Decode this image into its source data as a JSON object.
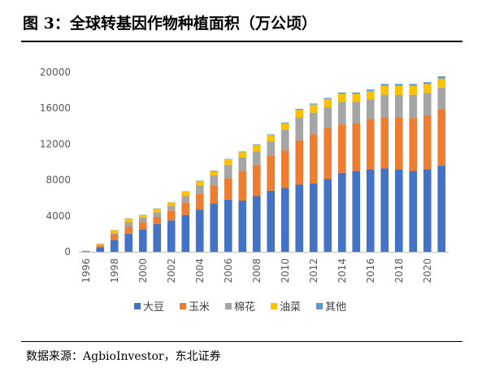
{
  "title": "图 3：全球转基因作物种植面积（万公顷）",
  "source": "数据来源：AgbioInvestor，东北证券",
  "chart_data": {
    "type": "bar",
    "stacked": true,
    "title": "图 3：全球转基因作物种植面积（万公顷）",
    "xlabel": "",
    "ylabel": "",
    "ylim": [
      0,
      20000
    ],
    "yticks": [
      "0",
      "4000",
      "8000",
      "12000",
      "16000",
      "20000"
    ],
    "categories": [
      "1996",
      "1997",
      "1998",
      "1999",
      "2000",
      "2001",
      "2002",
      "2003",
      "2004",
      "2005",
      "2006",
      "2007",
      "2008",
      "2009",
      "2010",
      "2011",
      "2012",
      "2013",
      "2014",
      "2015",
      "2016",
      "2017",
      "2018",
      "2019",
      "2020",
      "2021"
    ],
    "x_tick_labels": [
      "1996",
      "",
      "1998",
      "",
      "2000",
      "",
      "2002",
      "",
      "2004",
      "",
      "2006",
      "",
      "2008",
      "",
      "2010",
      "",
      "2012",
      "",
      "2014",
      "",
      "2016",
      "",
      "2018",
      "",
      "2020",
      ""
    ],
    "grid": false,
    "legend_position": "bottom",
    "series": [
      {
        "name": "大豆",
        "color": "#4472C4",
        "values": [
          50,
          500,
          1300,
          2000,
          2500,
          3100,
          3500,
          4100,
          4700,
          5400,
          5800,
          5700,
          6200,
          6800,
          7100,
          7500,
          7600,
          8100,
          8800,
          9000,
          9200,
          9300,
          9200,
          9000,
          9200,
          9600
        ]
      },
      {
        "name": "玉米",
        "color": "#ED7D31",
        "values": [
          30,
          200,
          600,
          800,
          800,
          800,
          1100,
          1400,
          1800,
          2000,
          2400,
          3300,
          3500,
          3900,
          4200,
          4900,
          5500,
          5700,
          5400,
          5300,
          5600,
          5700,
          5800,
          5900,
          6000,
          6300
        ]
      },
      {
        "name": "棉花",
        "color": "#A5A5A5",
        "values": [
          20,
          100,
          200,
          500,
          500,
          500,
          500,
          700,
          900,
          1100,
          1500,
          1500,
          1500,
          1600,
          2300,
          2600,
          2400,
          2300,
          2500,
          2400,
          2200,
          2500,
          2500,
          2600,
          2500,
          2400
        ]
      },
      {
        "name": "油菜",
        "color": "#FFC000",
        "values": [
          10,
          100,
          300,
          400,
          300,
          400,
          400,
          500,
          500,
          500,
          600,
          600,
          700,
          700,
          700,
          800,
          900,
          900,
          900,
          900,
          900,
          1000,
          1000,
          1000,
          1000,
          1000
        ]
      },
      {
        "name": "其他",
        "color": "#5B9BD5",
        "values": [
          10,
          20,
          20,
          30,
          30,
          30,
          30,
          40,
          40,
          50,
          50,
          80,
          80,
          80,
          100,
          120,
          120,
          130,
          150,
          150,
          180,
          200,
          200,
          200,
          200,
          250
        ]
      }
    ]
  }
}
